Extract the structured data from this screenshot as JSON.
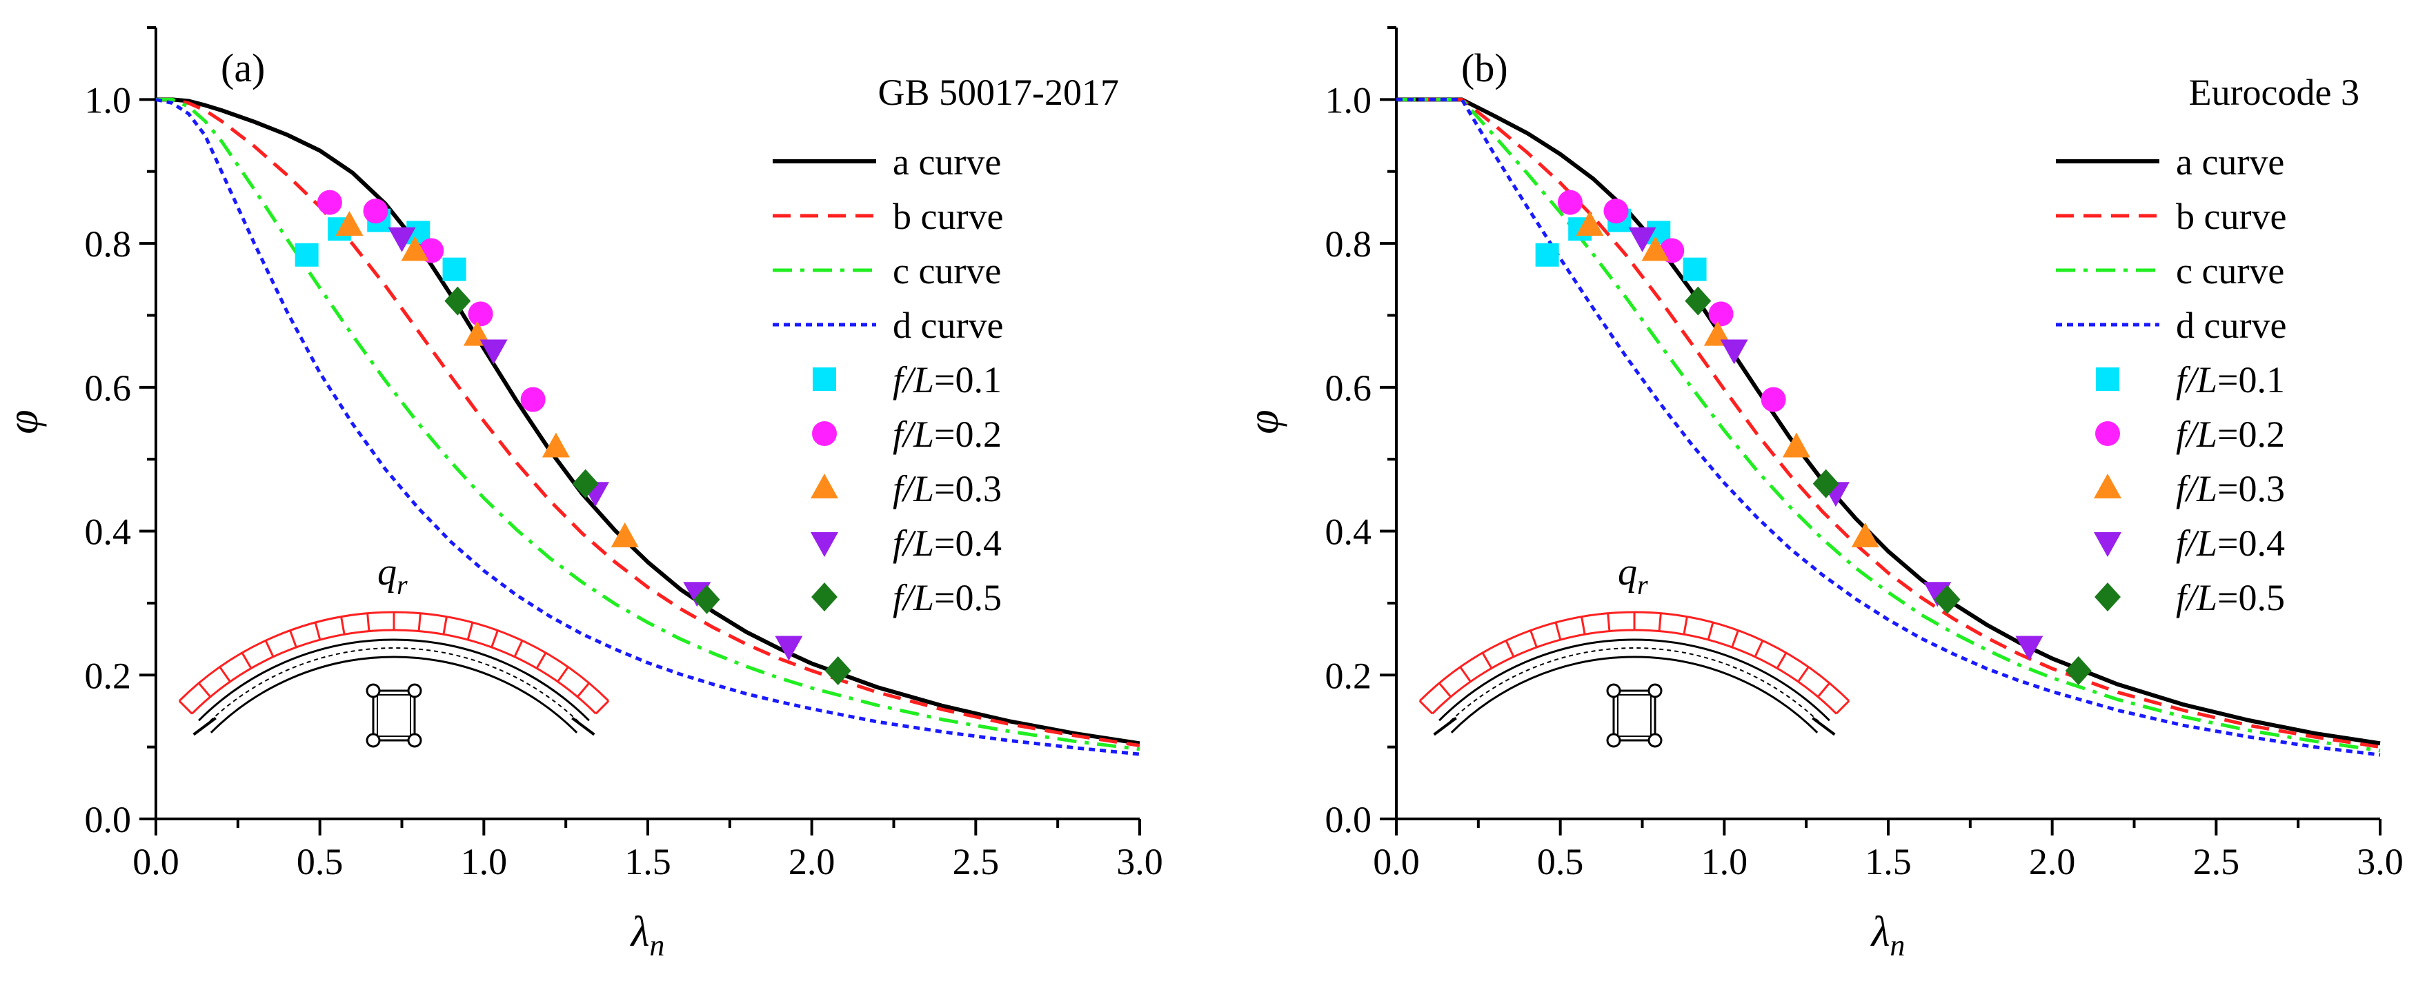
{
  "figure": {
    "panels": 2
  },
  "colors": {
    "a_curve": "#000000",
    "b_curve": "#ff2020",
    "c_curve": "#20ee20",
    "d_curve": "#1a1aff",
    "fL01": "#00e5ff",
    "fL02": "#ff20ff",
    "fL03": "#ff8c1a",
    "fL04": "#9a20ee",
    "fL05": "#1a7a1a",
    "load": "#ff2020"
  },
  "chart_data": [
    {
      "panel_label": "(a)",
      "type": "line",
      "title": "GB 50017-2017",
      "xlabel_main": "λ",
      "xlabel_sub": "n",
      "ylabel": "φ",
      "xlim": [
        0,
        3.0
      ],
      "ylim": [
        0,
        1.1
      ],
      "xticks": [
        "0.0",
        "0.5",
        "1.0",
        "1.5",
        "2.0",
        "2.5",
        "3.0"
      ],
      "yticks": [
        "0.0",
        "0.2",
        "0.4",
        "0.6",
        "0.8",
        "1.0"
      ],
      "inset_load_main": "q",
      "inset_load_sub": "r",
      "legend_position": "top-right",
      "series": [
        {
          "name": "a curve",
          "kind": "line",
          "dash": "solid",
          "x": [
            0,
            0.05,
            0.1,
            0.15,
            0.2,
            0.3,
            0.4,
            0.5,
            0.6,
            0.7,
            0.8,
            0.9,
            1.0,
            1.1,
            1.2,
            1.3,
            1.4,
            1.5,
            1.6,
            1.7,
            1.8,
            1.9,
            2.0,
            2.2,
            2.4,
            2.6,
            2.8,
            3.0
          ],
          "y": [
            1.0,
            1.0,
            0.998,
            0.992,
            0.985,
            0.969,
            0.951,
            0.929,
            0.898,
            0.855,
            0.798,
            0.728,
            0.654,
            0.581,
            0.513,
            0.452,
            0.401,
            0.357,
            0.319,
            0.288,
            0.26,
            0.237,
            0.216,
            0.183,
            0.157,
            0.136,
            0.119,
            0.105
          ]
        },
        {
          "name": "b curve",
          "kind": "line",
          "dash": "dash",
          "x": [
            0,
            0.05,
            0.1,
            0.15,
            0.2,
            0.3,
            0.4,
            0.5,
            0.6,
            0.7,
            0.8,
            0.9,
            1.0,
            1.1,
            1.2,
            1.3,
            1.4,
            1.5,
            1.6,
            1.7,
            1.8,
            1.9,
            2.0,
            2.2,
            2.4,
            2.6,
            2.8,
            3.0
          ],
          "y": [
            1.0,
            1.0,
            0.995,
            0.985,
            0.97,
            0.935,
            0.895,
            0.851,
            0.799,
            0.741,
            0.678,
            0.615,
            0.553,
            0.495,
            0.443,
            0.397,
            0.357,
            0.322,
            0.292,
            0.266,
            0.243,
            0.223,
            0.206,
            0.176,
            0.152,
            0.132,
            0.116,
            0.102
          ]
        },
        {
          "name": "c curve",
          "kind": "line",
          "dash": "dashdot",
          "x": [
            0,
            0.05,
            0.1,
            0.15,
            0.2,
            0.3,
            0.4,
            0.5,
            0.6,
            0.7,
            0.8,
            0.9,
            1.0,
            1.1,
            1.2,
            1.3,
            1.4,
            1.5,
            1.6,
            1.7,
            1.8,
            1.9,
            2.0,
            2.2,
            2.4,
            2.6,
            2.8,
            3.0
          ],
          "y": [
            1.0,
            1.0,
            0.99,
            0.97,
            0.942,
            0.875,
            0.806,
            0.738,
            0.672,
            0.609,
            0.55,
            0.496,
            0.446,
            0.402,
            0.363,
            0.329,
            0.299,
            0.273,
            0.25,
            0.23,
            0.212,
            0.196,
            0.182,
            0.158,
            0.138,
            0.122,
            0.108,
            0.097
          ]
        },
        {
          "name": "d curve",
          "kind": "line",
          "dash": "dot",
          "x": [
            0,
            0.05,
            0.1,
            0.15,
            0.2,
            0.3,
            0.4,
            0.5,
            0.6,
            0.7,
            0.8,
            0.9,
            1.0,
            1.1,
            1.2,
            1.3,
            1.4,
            1.5,
            1.6,
            1.7,
            1.8,
            1.9,
            2.0,
            2.2,
            2.4,
            2.6,
            2.8,
            3.0
          ],
          "y": [
            1.0,
            0.995,
            0.98,
            0.95,
            0.9,
            0.8,
            0.705,
            0.62,
            0.549,
            0.486,
            0.432,
            0.385,
            0.345,
            0.311,
            0.282,
            0.257,
            0.236,
            0.217,
            0.201,
            0.187,
            0.174,
            0.163,
            0.153,
            0.135,
            0.121,
            0.109,
            0.099,
            0.09
          ]
        },
        {
          "name_italic": "f/L",
          "name_rest": "=0.1",
          "kind": "scatter",
          "marker": "square",
          "x": [
            0.46,
            0.56,
            0.68,
            0.8,
            0.91
          ],
          "y": [
            0.784,
            0.82,
            0.832,
            0.815,
            0.764
          ]
        },
        {
          "name_italic": "f/L",
          "name_rest": "=0.2",
          "kind": "scatter",
          "marker": "circle",
          "x": [
            0.53,
            0.67,
            0.84,
            0.99,
            1.15
          ],
          "y": [
            0.857,
            0.845,
            0.79,
            0.702,
            0.583
          ]
        },
        {
          "name_italic": "f/L",
          "name_rest": "=0.3",
          "kind": "scatter",
          "marker": "triangle-up",
          "x": [
            0.59,
            0.79,
            0.98,
            1.22,
            1.43
          ],
          "y": [
            0.825,
            0.79,
            0.672,
            0.517,
            0.392
          ]
        },
        {
          "name_italic": "f/L",
          "name_rest": "=0.4",
          "kind": "scatter",
          "marker": "triangle-down",
          "x": [
            0.75,
            1.03,
            1.34,
            1.65,
            1.93
          ],
          "y": [
            0.808,
            0.652,
            0.454,
            0.315,
            0.24
          ]
        },
        {
          "name_italic": "f/L",
          "name_rest": "=0.5",
          "kind": "scatter",
          "marker": "diamond",
          "x": [
            0.92,
            1.31,
            1.68,
            2.08
          ],
          "y": [
            0.72,
            0.466,
            0.305,
            0.206
          ]
        }
      ]
    },
    {
      "panel_label": "(b)",
      "type": "line",
      "title": "Eurocode 3",
      "xlabel_main": "λ",
      "xlabel_sub": "n",
      "ylabel": "φ",
      "xlim": [
        0,
        3.0
      ],
      "ylim": [
        0,
        1.1
      ],
      "xticks": [
        "0.0",
        "0.5",
        "1.0",
        "1.5",
        "2.0",
        "2.5",
        "3.0"
      ],
      "yticks": [
        "0.0",
        "0.2",
        "0.4",
        "0.6",
        "0.8",
        "1.0"
      ],
      "inset_load_main": "q",
      "inset_load_sub": "r",
      "legend_position": "top-right",
      "series": [
        {
          "name": "a curve",
          "kind": "line",
          "dash": "solid",
          "x": [
            0,
            0.1,
            0.2,
            0.3,
            0.4,
            0.5,
            0.6,
            0.7,
            0.8,
            0.9,
            1.0,
            1.1,
            1.2,
            1.3,
            1.4,
            1.5,
            1.6,
            1.7,
            1.8,
            1.9,
            2.0,
            2.2,
            2.4,
            2.6,
            2.8,
            3.0
          ],
          "y": [
            1.0,
            1.0,
            1.0,
            0.977,
            0.953,
            0.924,
            0.89,
            0.848,
            0.796,
            0.734,
            0.666,
            0.597,
            0.53,
            0.47,
            0.418,
            0.372,
            0.333,
            0.299,
            0.27,
            0.245,
            0.223,
            0.187,
            0.159,
            0.137,
            0.119,
            0.105
          ]
        },
        {
          "name": "b curve",
          "kind": "line",
          "dash": "dash",
          "x": [
            0,
            0.1,
            0.2,
            0.3,
            0.4,
            0.5,
            0.6,
            0.7,
            0.8,
            0.9,
            1.0,
            1.1,
            1.2,
            1.3,
            1.4,
            1.5,
            1.6,
            1.7,
            1.8,
            1.9,
            2.0,
            2.2,
            2.4,
            2.6,
            2.8,
            3.0
          ],
          "y": [
            1.0,
            1.0,
            1.0,
            0.964,
            0.926,
            0.884,
            0.837,
            0.784,
            0.724,
            0.661,
            0.597,
            0.535,
            0.478,
            0.427,
            0.382,
            0.342,
            0.308,
            0.278,
            0.252,
            0.229,
            0.209,
            0.176,
            0.151,
            0.13,
            0.114,
            0.1
          ]
        },
        {
          "name": "c curve",
          "kind": "line",
          "dash": "dashdot",
          "x": [
            0,
            0.1,
            0.2,
            0.3,
            0.4,
            0.5,
            0.6,
            0.7,
            0.8,
            0.9,
            1.0,
            1.1,
            1.2,
            1.3,
            1.4,
            1.5,
            1.6,
            1.7,
            1.8,
            1.9,
            2.0,
            2.2,
            2.4,
            2.6,
            2.8,
            3.0
          ],
          "y": [
            1.0,
            1.0,
            1.0,
            0.949,
            0.897,
            0.843,
            0.785,
            0.725,
            0.662,
            0.6,
            0.54,
            0.484,
            0.434,
            0.389,
            0.349,
            0.315,
            0.284,
            0.258,
            0.235,
            0.214,
            0.196,
            0.166,
            0.142,
            0.123,
            0.108,
            0.095
          ]
        },
        {
          "name": "d curve",
          "kind": "line",
          "dash": "dot",
          "x": [
            0,
            0.1,
            0.2,
            0.3,
            0.4,
            0.5,
            0.6,
            0.7,
            0.8,
            0.9,
            1.0,
            1.1,
            1.2,
            1.3,
            1.4,
            1.5,
            1.6,
            1.7,
            1.8,
            1.9,
            2.0,
            2.2,
            2.4,
            2.6,
            2.8,
            3.0
          ],
          "y": [
            1.0,
            1.0,
            1.0,
            0.923,
            0.85,
            0.779,
            0.71,
            0.643,
            0.58,
            0.521,
            0.467,
            0.419,
            0.376,
            0.339,
            0.306,
            0.277,
            0.251,
            0.229,
            0.209,
            0.192,
            0.177,
            0.151,
            0.13,
            0.114,
            0.1,
            0.089
          ]
        },
        {
          "name_italic": "f/L",
          "name_rest": "=0.1",
          "kind": "scatter",
          "marker": "square",
          "x": [
            0.46,
            0.56,
            0.68,
            0.8,
            0.91
          ],
          "y": [
            0.784,
            0.82,
            0.832,
            0.815,
            0.764
          ]
        },
        {
          "name_italic": "f/L",
          "name_rest": "=0.2",
          "kind": "scatter",
          "marker": "circle",
          "x": [
            0.53,
            0.67,
            0.84,
            0.99,
            1.15
          ],
          "y": [
            0.857,
            0.845,
            0.79,
            0.702,
            0.583
          ]
        },
        {
          "name_italic": "f/L",
          "name_rest": "=0.3",
          "kind": "scatter",
          "marker": "triangle-up",
          "x": [
            0.59,
            0.79,
            0.98,
            1.22,
            1.43
          ],
          "y": [
            0.825,
            0.79,
            0.672,
            0.517,
            0.392
          ]
        },
        {
          "name_italic": "f/L",
          "name_rest": "=0.4",
          "kind": "scatter",
          "marker": "triangle-down",
          "x": [
            0.75,
            1.03,
            1.34,
            1.65,
            1.93
          ],
          "y": [
            0.808,
            0.652,
            0.454,
            0.315,
            0.24
          ]
        },
        {
          "name_italic": "f/L",
          "name_rest": "=0.5",
          "kind": "scatter",
          "marker": "diamond",
          "x": [
            0.92,
            1.31,
            1.68,
            2.08
          ],
          "y": [
            0.72,
            0.466,
            0.305,
            0.206
          ]
        }
      ]
    }
  ]
}
